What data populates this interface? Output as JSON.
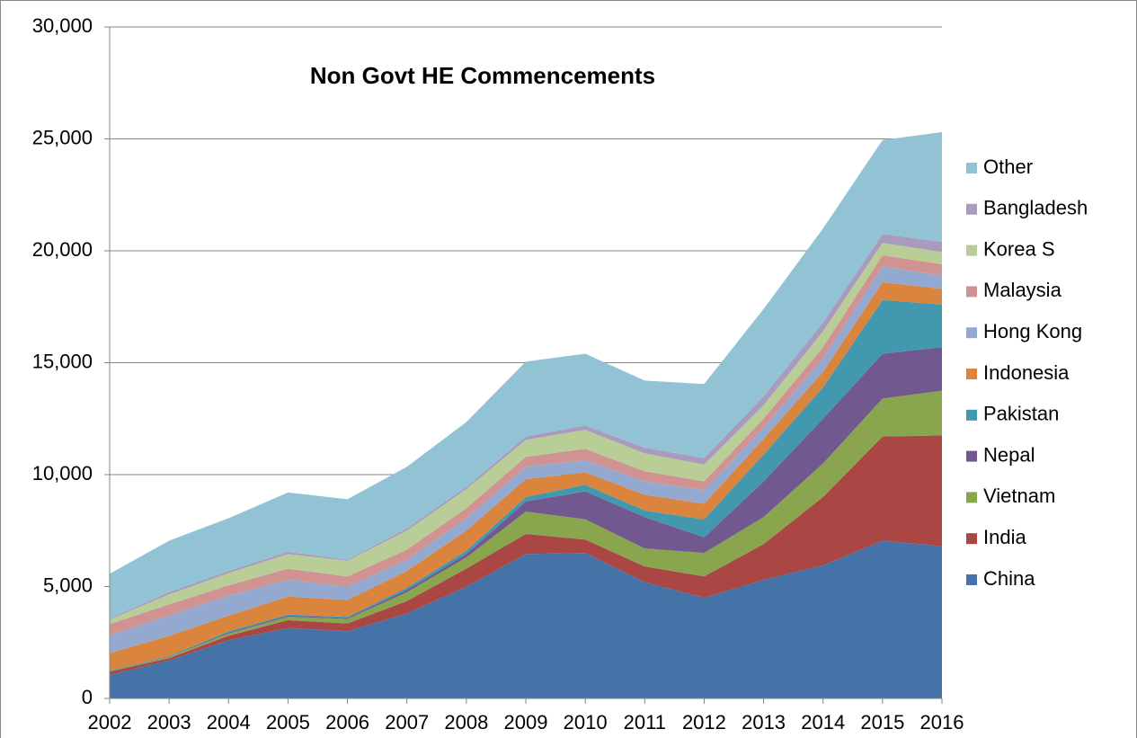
{
  "chart_data": {
    "type": "stacked_area",
    "title": "Non Govt HE Commencements",
    "categories": [
      "2002",
      "2003",
      "2004",
      "2005",
      "2006",
      "2007",
      "2008",
      "2009",
      "2010",
      "2011",
      "2012",
      "2013",
      "2014",
      "2015",
      "2016"
    ],
    "series": [
      {
        "name": "China",
        "color": "#4572a7",
        "values": [
          1050,
          1700,
          2600,
          3150,
          3000,
          3800,
          5000,
          6450,
          6500,
          5200,
          4500,
          5300,
          5950,
          7050,
          6800
        ]
      },
      {
        "name": "India",
        "color": "#aa4643",
        "values": [
          150,
          100,
          200,
          350,
          350,
          550,
          800,
          900,
          600,
          700,
          950,
          1600,
          3050,
          4650,
          4950
        ]
      },
      {
        "name": "Vietnam",
        "color": "#89a54e",
        "values": [
          30,
          50,
          100,
          150,
          200,
          400,
          500,
          1000,
          900,
          800,
          1050,
          1200,
          1500,
          1700,
          2000
        ]
      },
      {
        "name": "Nepal",
        "color": "#71588f",
        "values": [
          20,
          20,
          50,
          50,
          50,
          100,
          150,
          450,
          1250,
          1400,
          700,
          1600,
          2000,
          2000,
          1950
        ]
      },
      {
        "name": "Pakistan",
        "color": "#4198af",
        "values": [
          20,
          30,
          50,
          50,
          50,
          100,
          150,
          200,
          300,
          300,
          800,
          1200,
          1400,
          2400,
          1900
        ]
      },
      {
        "name": "Indonesia",
        "color": "#db843d",
        "values": [
          750,
          900,
          700,
          800,
          750,
          750,
          900,
          800,
          550,
          700,
          700,
          700,
          700,
          800,
          700
        ]
      },
      {
        "name": "Hong Kong",
        "color": "#93a9cf",
        "values": [
          800,
          900,
          900,
          750,
          600,
          500,
          550,
          550,
          550,
          600,
          600,
          500,
          600,
          700,
          600
        ]
      },
      {
        "name": "Malaysia",
        "color": "#d19392",
        "values": [
          500,
          500,
          450,
          500,
          450,
          450,
          450,
          450,
          500,
          450,
          400,
          400,
          500,
          500,
          500
        ]
      },
      {
        "name": "Korea S",
        "color": "#b9cd96",
        "values": [
          200,
          450,
          550,
          650,
          700,
          850,
          850,
          750,
          850,
          800,
          750,
          600,
          700,
          550,
          550
        ]
      },
      {
        "name": "Bangladesh",
        "color": "#a99bbd",
        "values": [
          50,
          100,
          100,
          100,
          50,
          100,
          100,
          150,
          200,
          250,
          300,
          400,
          400,
          400,
          450
        ]
      },
      {
        "name": "Other",
        "color": "#92c3d5",
        "values": [
          2000,
          2300,
          2350,
          2650,
          2700,
          2750,
          2900,
          3350,
          3200,
          3000,
          3300,
          3900,
          4200,
          4200,
          4900
        ]
      }
    ],
    "ylim": [
      0,
      30000
    ],
    "yticks": [
      0,
      {
        "value": 5000,
        "label": "5,000"
      },
      {
        "value": 10000,
        "label": "10,000"
      },
      {
        "value": 15000,
        "label": "15,000"
      },
      {
        "value": 20000,
        "label": "20,000"
      },
      {
        "value": 25000,
        "label": "25,000"
      },
      {
        "value": 30000,
        "label": "30,000"
      }
    ],
    "grid": true,
    "legend": "right"
  }
}
